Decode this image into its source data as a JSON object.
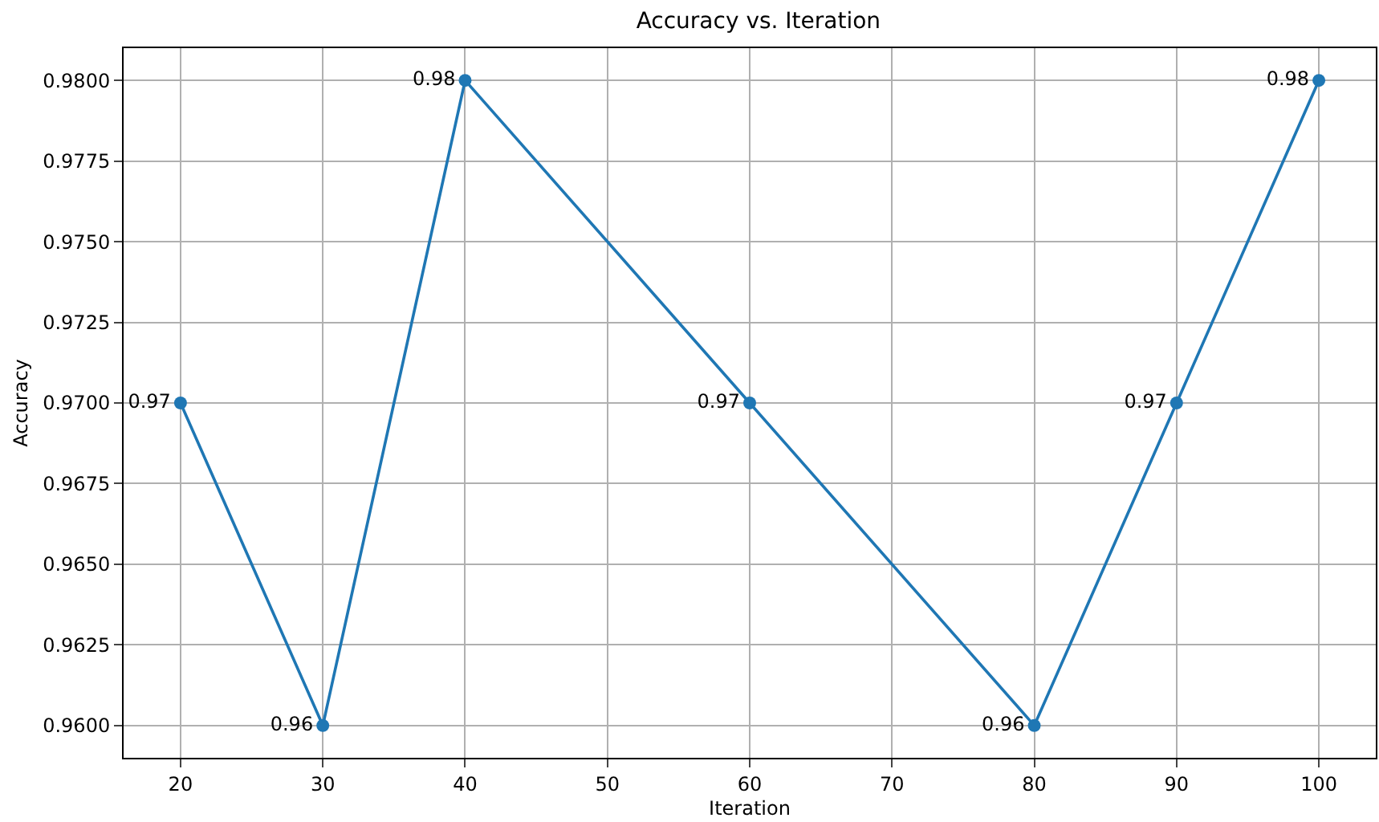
{
  "chart_data": {
    "type": "line",
    "title": "Accuracy vs. Iteration",
    "xlabel": "Iteration",
    "ylabel": "Accuracy",
    "x": [
      20,
      30,
      40,
      60,
      80,
      90,
      100
    ],
    "series": [
      {
        "color": "#1f77b4",
        "values": [
          0.97,
          0.96,
          0.98,
          0.97,
          0.96,
          0.97,
          0.98
        ]
      }
    ],
    "data_labels": true,
    "marker": "circle",
    "line_style": "solid",
    "grid": true,
    "xlim": [
      16,
      104
    ],
    "xticks": [
      20,
      30,
      40,
      50,
      60,
      70,
      80,
      90,
      100
    ],
    "ylim": [
      0.959,
      0.981
    ],
    "yticks": [
      {
        "value": 0.96,
        "label": "0.9600"
      },
      {
        "value": 0.9625,
        "label": "0.9625"
      },
      {
        "value": 0.965,
        "label": "0.9650"
      },
      {
        "value": 0.9675,
        "label": "0.9675"
      },
      {
        "value": 0.97,
        "label": "0.9700"
      },
      {
        "value": 0.9725,
        "label": "0.9725"
      },
      {
        "value": 0.975,
        "label": "0.9750"
      },
      {
        "value": 0.9775,
        "label": "0.9775"
      },
      {
        "value": 0.98,
        "label": "0.9800"
      }
    ]
  }
}
